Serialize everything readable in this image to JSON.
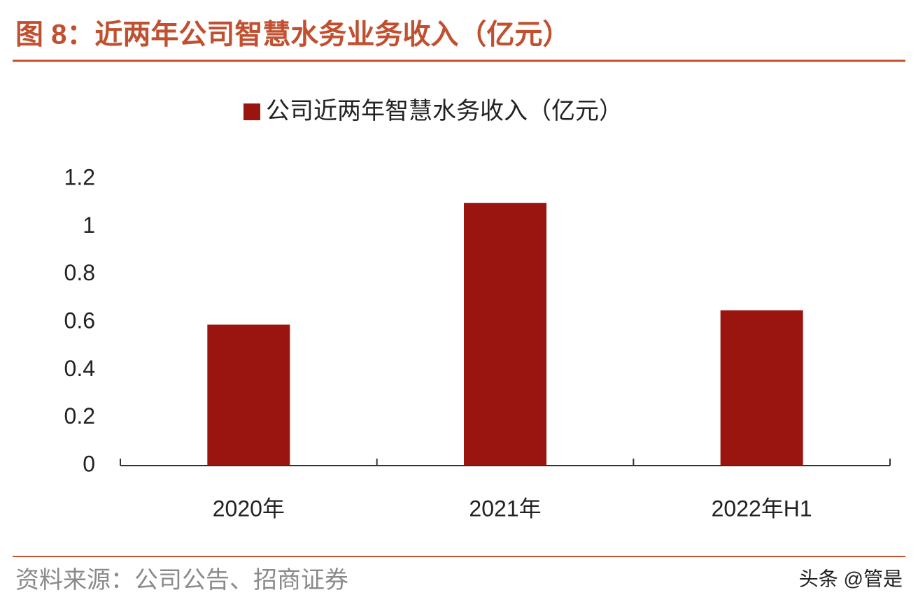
{
  "chart_data": {
    "type": "bar",
    "title": "图 8：近两年公司智慧水务业务收入（亿元）",
    "categories": [
      "2020年",
      "2021年",
      "2022年H1"
    ],
    "series": [
      {
        "name": "公司近两年智慧水务收入（亿元）",
        "color": "#9b1510",
        "values": [
          0.59,
          1.1,
          0.65
        ]
      }
    ],
    "ylim": [
      0,
      1.2
    ],
    "yticks": [
      0,
      0.2,
      0.4,
      0.6,
      0.8,
      1,
      1.2
    ],
    "grid": false
  },
  "source": "资料来源：公司公告、招商证券",
  "watermark": "头条 @管是"
}
